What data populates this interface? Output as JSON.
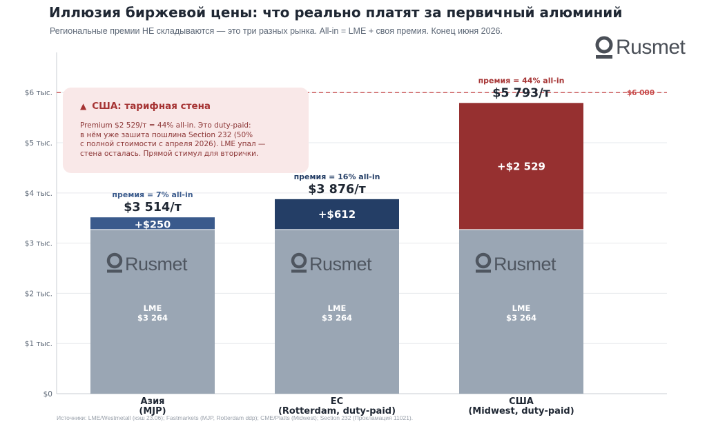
{
  "header": {
    "title": "Иллюзия биржевой цены: что реально платят за первичный алюминий",
    "subtitle": "Региональные премии НЕ складываются — это три разных рынка. All-in = LME + своя премия. Конец июня 2026."
  },
  "brand": {
    "logo_text": "Rusmet",
    "logo_icon": "rusmet-logo-icon"
  },
  "callout": {
    "icon": "warning-triangle-icon",
    "title": "США: тарифная стена",
    "body": "Premium $2 529/т = 44% all-in. Это duty-paid:\nв нём уже зашита пошлина Section 232 (50%\nс полной стоимости с апреля 2026). LME упал —\nстена осталась. Прямой стимул для вторички."
  },
  "source": "Источники: LME/Westmetall (кэш 23.06); Fastmarkets (MJP, Rotterdam ddp); CME/Platts (Midwest); Section 232 (Прокламация 11021).",
  "chart_data": {
    "type": "bar",
    "stacked": true,
    "categories": [
      "Азия\n(MJP)",
      "ЕС\n(Rotterdam, duty-paid)",
      "США\n(Midwest, duty-paid)"
    ],
    "series": [
      {
        "values": [
          3264,
          3264,
          3264
        ],
        "bar_labels": [
          "LME\n$3 264",
          "LME\n$3 264",
          "LME\n$3 264"
        ]
      },
      {
        "values": [
          250,
          612,
          2529
        ],
        "bar_labels": [
          "+$250",
          "+$612",
          "+$2 529"
        ]
      }
    ],
    "totals_labels": [
      "$3 514/т",
      "$3 876/т",
      "$5 793/т"
    ],
    "premium_notes": [
      "премия = 7% all-in",
      "премия = 16% all-in",
      "премия = 44% all-in"
    ],
    "ylim": [
      0,
      6800
    ],
    "yticks": [
      0,
      1000,
      2000,
      3000,
      4000,
      5000,
      6000
    ],
    "ytick_labels": [
      "$0",
      "$1 тыс.",
      "$2 тыс.",
      "$3 тыс.",
      "$4 тыс.",
      "$5 тыс.",
      "$6 тыс."
    ],
    "reference_line": {
      "value": 6000,
      "label": "$6 000"
    },
    "grid": true,
    "colors": {
      "base": "#9aa6b4",
      "premium": [
        "#3a5a8c",
        "#243e66",
        "#963030"
      ],
      "note": [
        "#3a5a8c",
        "#243e66",
        "#a63434"
      ],
      "reference": "#c84a4a"
    },
    "bar_watermark": "Rusmet"
  }
}
